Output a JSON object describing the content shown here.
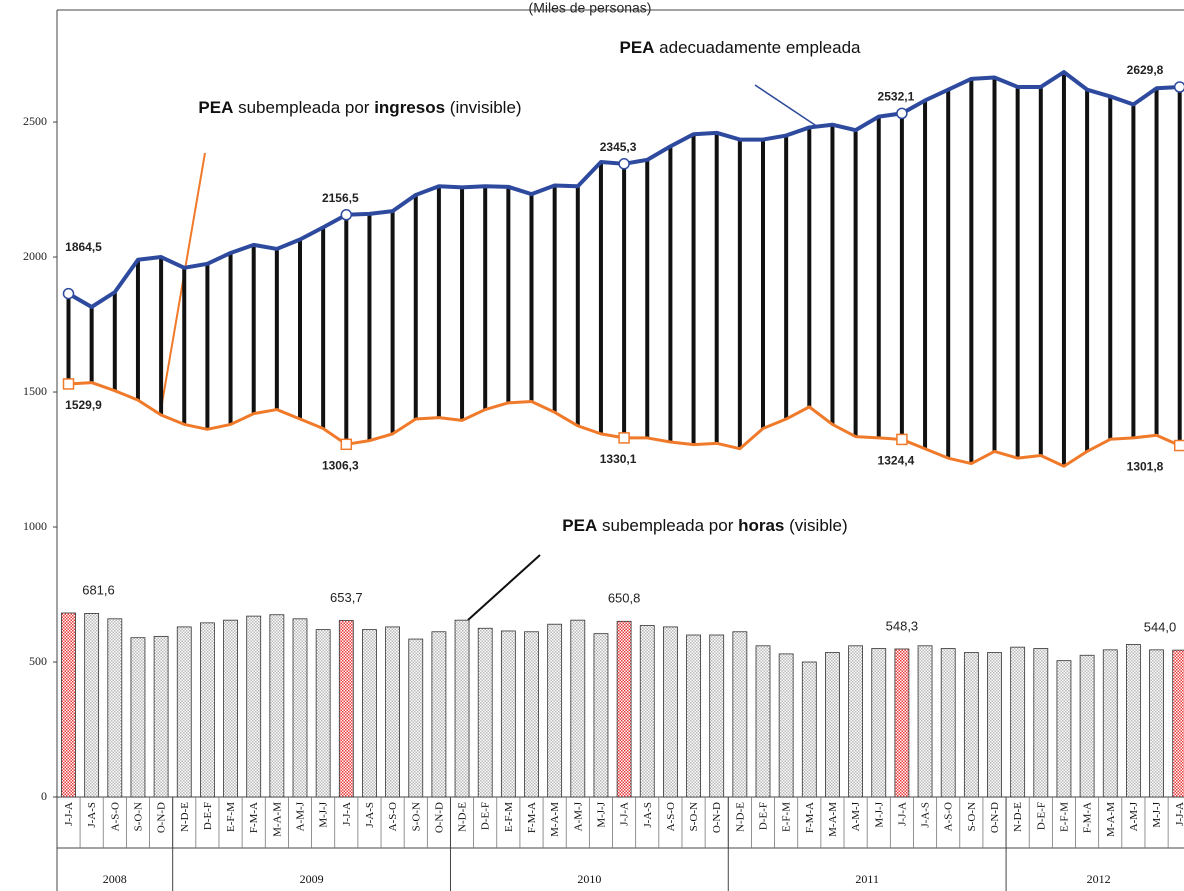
{
  "chart_data": {
    "type": "combo",
    "title": "(Miles de personas)",
    "categories": [
      "J-J-A",
      "J-A-S",
      "A-S-O",
      "S-O-N",
      "O-N-D",
      "N-D-E",
      "D-E-F",
      "E-F-M",
      "F-M-A",
      "M-A-M",
      "A-M-J",
      "M-J-J",
      "J-J-A",
      "J-A-S",
      "A-S-O",
      "S-O-N",
      "O-N-D",
      "N-D-E",
      "D-E-F",
      "E-F-M",
      "F-M-A",
      "M-A-M",
      "A-M-J",
      "M-J-J",
      "J-J-A",
      "J-A-S",
      "A-S-O",
      "S-O-N",
      "O-N-D",
      "N-D-E",
      "D-E-F",
      "E-F-M",
      "F-M-A",
      "M-A-M",
      "A-M-J",
      "M-J-J",
      "J-J-A",
      "J-A-S",
      "A-S-O",
      "S-O-N",
      "O-N-D",
      "N-D-E",
      "D-E-F",
      "E-F-M",
      "F-M-A",
      "M-A-M",
      "A-M-J",
      "M-J-J",
      "J-J-A"
    ],
    "groups": [
      {
        "label": "2008",
        "count": 5
      },
      {
        "label": "2009",
        "count": 12
      },
      {
        "label": "2010",
        "count": 12
      },
      {
        "label": "2011",
        "count": 12
      },
      {
        "label": "2012",
        "count": 8
      }
    ],
    "ylim": [
      0,
      2915
    ],
    "yticks": [
      0,
      500,
      1000,
      1500,
      2000,
      2500
    ],
    "series": [
      {
        "kind": "line",
        "color": "#2e4a9e",
        "label": [
          {
            "text": "PEA",
            "bold": true
          },
          {
            "text": " adecuadamente empleada"
          }
        ],
        "values": [
          1864.5,
          1815,
          1870,
          1990,
          2000,
          1960,
          1975,
          2015,
          2045,
          2030,
          2065,
          2110,
          2156.5,
          2160,
          2170,
          2230,
          2262,
          2258,
          2262,
          2260,
          2233,
          2265,
          2262,
          2352,
          2345.3,
          2360,
          2410,
          2455,
          2460,
          2435,
          2435,
          2450,
          2480,
          2490,
          2470,
          2520,
          2532.1,
          2580,
          2620,
          2660,
          2665,
          2630,
          2630,
          2685,
          2620,
          2595,
          2565,
          2625,
          2629.8
        ],
        "value_labels": [
          "1864,5",
          null,
          null,
          null,
          null,
          null,
          null,
          null,
          null,
          null,
          null,
          null,
          "2156,5",
          null,
          null,
          null,
          null,
          null,
          null,
          null,
          null,
          null,
          null,
          null,
          "2345,3",
          null,
          null,
          null,
          null,
          null,
          null,
          null,
          null,
          null,
          null,
          null,
          "2532,1",
          null,
          null,
          null,
          null,
          null,
          null,
          null,
          null,
          null,
          null,
          null,
          "2629,8"
        ]
      },
      {
        "kind": "line",
        "color": "#f07a2a",
        "label": [
          {
            "text": "PEA",
            "bold": true
          },
          {
            "text": " subempleada por "
          },
          {
            "text": "ingresos",
            "bold": true
          },
          {
            "text": " (invisible)"
          }
        ],
        "values": [
          1529.9,
          1535,
          1505,
          1470,
          1415,
          1380,
          1362,
          1380,
          1420,
          1435,
          1400,
          1365,
          1306.3,
          1320,
          1345,
          1400,
          1405,
          1395,
          1435,
          1460,
          1465,
          1425,
          1375,
          1345,
          1330.1,
          1330,
          1315,
          1305,
          1310,
          1290,
          1365,
          1400,
          1445,
          1380,
          1335,
          1330,
          1324.4,
          1290,
          1255,
          1235,
          1280,
          1255,
          1265,
          1225,
          1280,
          1325,
          1330,
          1340,
          1301.8
        ],
        "value_labels": [
          "1529,9",
          null,
          null,
          null,
          null,
          null,
          null,
          null,
          null,
          null,
          null,
          null,
          "1306,3",
          null,
          null,
          null,
          null,
          null,
          null,
          null,
          null,
          null,
          null,
          null,
          "1330,1",
          null,
          null,
          null,
          null,
          null,
          null,
          null,
          null,
          null,
          null,
          null,
          "1324,4",
          null,
          null,
          null,
          null,
          null,
          null,
          null,
          null,
          null,
          null,
          null,
          "1301,8"
        ]
      },
      {
        "kind": "bar",
        "color": "#b8b8b8",
        "highlight_color": "#e83a3a",
        "label": [
          {
            "text": "PEA",
            "bold": true
          },
          {
            "text": " subempleada por "
          },
          {
            "text": "horas",
            "bold": true
          },
          {
            "text": " (visible)"
          }
        ],
        "values": [
          681.6,
          680,
          660,
          590,
          595,
          630,
          645,
          655,
          670,
          675,
          660,
          620,
          653.7,
          620,
          630,
          585,
          612,
          655,
          625,
          615,
          612,
          640,
          655,
          605,
          650.8,
          635,
          630,
          600,
          600,
          612,
          560,
          530,
          500,
          535,
          560,
          550,
          548.3,
          560,
          550,
          535,
          535,
          555,
          550,
          505,
          525,
          545,
          565,
          545,
          544.0
        ],
        "value_labels": [
          "681,6",
          null,
          null,
          null,
          null,
          null,
          null,
          null,
          null,
          null,
          null,
          null,
          "653,7",
          null,
          null,
          null,
          null,
          null,
          null,
          null,
          null,
          null,
          null,
          null,
          "650,8",
          null,
          null,
          null,
          null,
          null,
          null,
          null,
          null,
          null,
          null,
          null,
          "548,3",
          null,
          null,
          null,
          null,
          null,
          null,
          null,
          null,
          null,
          null,
          null,
          "544,0"
        ]
      }
    ]
  }
}
